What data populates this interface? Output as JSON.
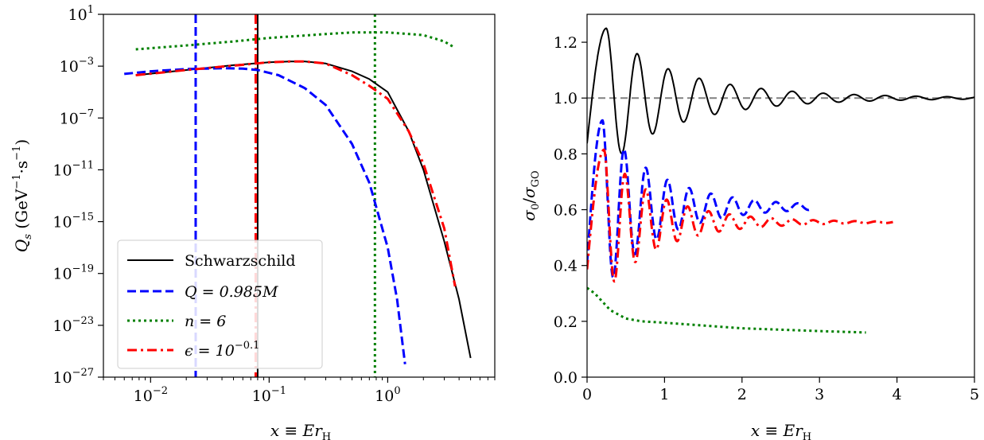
{
  "chart_data": [
    {
      "type": "line",
      "xscale": "log",
      "yscale": "log",
      "xlim": [
        0.004,
        8
      ],
      "ylim": [
        1e-27,
        10
      ],
      "xlabel": "x ≡ Er",
      "xlabel_sub": "H",
      "ylabel_parts": {
        "main": "Q",
        "sub": "s",
        "units_open": "(GeV",
        "exp1": "−1",
        "dot": "·",
        "s": "s",
        "exp2": "−1",
        "close": ")"
      },
      "xticks": [
        {
          "value": 0.01,
          "base": "10",
          "exp": "−2"
        },
        {
          "value": 0.1,
          "base": "10",
          "exp": "−1"
        },
        {
          "value": 1,
          "base": "10",
          "exp": "0"
        }
      ],
      "yticks": [
        {
          "value": 10,
          "base": "10",
          "exp": "1"
        },
        {
          "value": 0.001,
          "base": "10",
          "exp": "−3"
        },
        {
          "value": 1e-07,
          "base": "10",
          "exp": "−7"
        },
        {
          "value": 1e-11,
          "base": "10",
          "exp": "−11"
        },
        {
          "value": 1e-15,
          "base": "10",
          "exp": "−15"
        },
        {
          "value": 1e-19,
          "base": "10",
          "exp": "−19"
        },
        {
          "value": 1e-23,
          "base": "10",
          "exp": "−23"
        },
        {
          "value": 1e-27,
          "base": "10",
          "exp": "−27"
        }
      ],
      "legend_position": "lower left",
      "series": [
        {
          "name": "Schwarzschild",
          "color": "#000000",
          "style": "solid",
          "x": [
            0.0075,
            0.02,
            0.05,
            0.1,
            0.15,
            0.2,
            0.3,
            0.5,
            0.7,
            1.0,
            1.5,
            2.0,
            3.0,
            4.0,
            5.0
          ],
          "y": [
            0.0002,
            0.0005,
            0.0012,
            0.002,
            0.0023,
            0.0023,
            0.0016,
            0.0004,
            0.0001,
            1e-05,
            1e-08,
            1e-11,
            3e-17,
            1e-21,
            3e-26
          ],
          "vline": 0.08
        },
        {
          "name": "Q = 0.985M",
          "color": "#0000ff",
          "style": "dashed",
          "x": [
            0.006,
            0.01,
            0.02,
            0.04,
            0.06,
            0.08,
            0.12,
            0.2,
            0.3,
            0.5,
            0.7,
            1.0,
            1.2,
            1.4
          ],
          "y": [
            0.00025,
            0.0004,
            0.0006,
            0.0007,
            0.00065,
            0.0005,
            0.0002,
            2e-05,
            1e-06,
            1e-09,
            1e-12,
            1e-17,
            1e-21,
            1e-26
          ],
          "vline": 0.024
        },
        {
          "name": "n = 6",
          "color": "#008000",
          "style": "dotted",
          "x": [
            0.0075,
            0.02,
            0.05,
            0.1,
            0.3,
            0.5,
            1.0,
            2.0,
            3.0,
            3.6
          ],
          "y": [
            0.02,
            0.04,
            0.08,
            0.15,
            0.3,
            0.4,
            0.4,
            0.25,
            0.08,
            0.03
          ],
          "vline": 0.78
        },
        {
          "name": "ϵ = 10",
          "name_exp": "−0.1",
          "color": "#ff0000",
          "style": "dashdot",
          "x": [
            0.0075,
            0.02,
            0.05,
            0.1,
            0.15,
            0.2,
            0.3,
            0.5,
            0.7,
            1.0,
            1.5,
            2.0,
            3.0,
            3.7
          ],
          "y": [
            0.0002,
            0.0005,
            0.0011,
            0.002,
            0.0023,
            0.0023,
            0.0016,
            0.0002,
            3e-05,
            3e-06,
            1e-08,
            3e-11,
            3e-16,
            1e-20
          ],
          "vline": 0.077
        }
      ]
    },
    {
      "type": "line",
      "xlim": [
        0,
        5
      ],
      "ylim": [
        0,
        1.3
      ],
      "xlabel": "x ≡ Er",
      "xlabel_sub": "H",
      "ylabel_parts": {
        "num": "σ",
        "num_sub": "0",
        "den": "σ",
        "den_sub": "GO"
      },
      "xticks": [
        "0",
        "1",
        "2",
        "3",
        "4",
        "5"
      ],
      "xtick_values": [
        0,
        1,
        2,
        3,
        4,
        5
      ],
      "yticks": [
        "0.0",
        "0.2",
        "0.4",
        "0.6",
        "0.8",
        "1.0",
        "1.2"
      ],
      "ytick_values": [
        0,
        0.2,
        0.4,
        0.6,
        0.8,
        1.0,
        1.2
      ],
      "hline": {
        "value": 1.0,
        "color": "#808080",
        "style": "dashed"
      },
      "series": [
        {
          "name": "Schwarzschild",
          "color": "#000000",
          "style": "solid",
          "xmax": 5.0,
          "model": {
            "base": 1.0,
            "amp": 0.25,
            "peak": 0.25,
            "period": 0.4,
            "decay": 0.6
          }
        },
        {
          "name": "Q = 0.985M",
          "color": "#0000ff",
          "style": "dashed",
          "xmax": 2.9,
          "model": {
            "base": 0.61,
            "amp": 0.31,
            "peak": 0.2,
            "period": 0.28,
            "decay": 0.9
          }
        },
        {
          "name": "n = 6",
          "color": "#008000",
          "style": "dotted",
          "x": [
            0,
            0.1,
            0.2,
            0.3,
            0.5,
            0.7,
            1.0,
            1.5,
            2.0,
            2.5,
            3.0,
            3.6
          ],
          "y": [
            0.32,
            0.3,
            0.27,
            0.24,
            0.21,
            0.2,
            0.195,
            0.185,
            0.175,
            0.17,
            0.165,
            0.16
          ]
        },
        {
          "name": "ϵ = 10",
          "color": "#ff0000",
          "style": "dashdot",
          "xmax": 3.95,
          "model": {
            "base": 0.555,
            "amp": 0.26,
            "peak": 0.22,
            "period": 0.27,
            "decay": 0.95
          }
        }
      ]
    }
  ]
}
